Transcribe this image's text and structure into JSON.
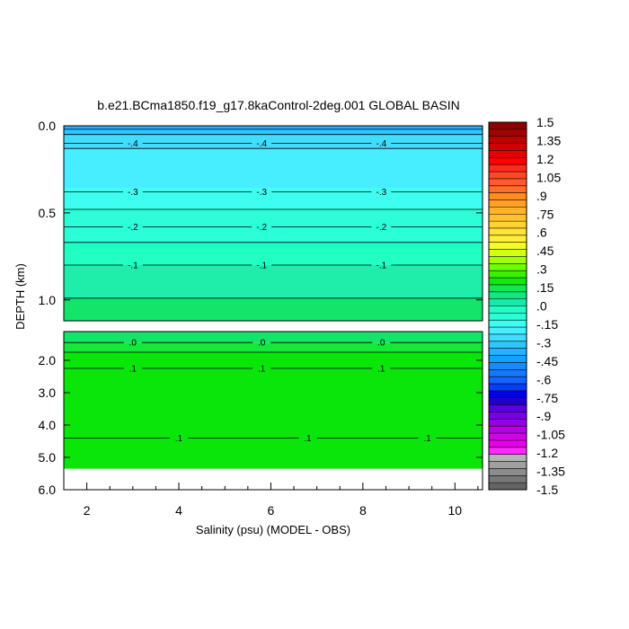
{
  "chart_data": {
    "type": "heatmap",
    "title": "b.e21.BCma1850.f19_g17.8kaControl-2deg.001 GLOBAL BASIN",
    "xlabel": "Salinity (psu) (MODEL - OBS)",
    "ylabel": "DEPTH (km)",
    "xlim": [
      1.5,
      10.6
    ],
    "x_ticks": [
      "2",
      "4",
      "6",
      "8",
      "10"
    ],
    "upper_panel": {
      "ylim": [
        0.0,
        1.12
      ],
      "y_ticks": [
        "0.0",
        "0.5",
        "1.0"
      ],
      "bands": [
        {
          "from": 0.0,
          "to": 0.02,
          "color": "#1fb4ff"
        },
        {
          "from": 0.02,
          "to": 0.05,
          "color": "#2ec6ff"
        },
        {
          "from": 0.05,
          "to": 0.13,
          "color": "#41ddff"
        },
        {
          "from": 0.13,
          "to": 0.36,
          "color": "#46eeff"
        },
        {
          "from": 0.36,
          "to": 0.48,
          "color": "#3effef"
        },
        {
          "from": 0.48,
          "to": 0.67,
          "color": "#2cffd8"
        },
        {
          "from": 0.67,
          "to": 0.8,
          "color": "#22ffc2"
        },
        {
          "from": 0.8,
          "to": 0.99,
          "color": "#1eeeaa"
        },
        {
          "from": 0.99,
          "to": 1.12,
          "color": "#14e56a"
        }
      ],
      "contours": [
        {
          "depth": 0.02,
          "label": ""
        },
        {
          "depth": 0.05,
          "label": ""
        },
        {
          "depth": 0.1,
          "label": "-.4"
        },
        {
          "depth": 0.13,
          "label": ""
        },
        {
          "depth": 0.38,
          "label": "-.3"
        },
        {
          "depth": 0.48,
          "label": ""
        },
        {
          "depth": 0.58,
          "label": "-.2"
        },
        {
          "depth": 0.67,
          "label": ""
        },
        {
          "depth": 0.8,
          "label": "-.1"
        },
        {
          "depth": 0.99,
          "label": ""
        }
      ]
    },
    "lower_panel": {
      "ylim": [
        1.0,
        6.0
      ],
      "y_ticks": [
        "2.0",
        "3.0",
        "4.0",
        "5.0",
        "6.0"
      ],
      "data_bottom": 5.35,
      "bands": [
        {
          "from": 1.0,
          "to": 1.45,
          "color": "#14e56a"
        },
        {
          "from": 1.45,
          "to": 1.75,
          "color": "#14e83a"
        },
        {
          "from": 1.75,
          "to": 5.35,
          "color": "#0ae60a"
        }
      ],
      "contours": [
        {
          "depth": 1.45,
          "label": ".0"
        },
        {
          "depth": 1.75,
          "label": ""
        },
        {
          "depth": 2.25,
          "label": ".1"
        },
        {
          "depth": 4.4,
          "label": ".1"
        }
      ]
    },
    "colorbar": {
      "labels": [
        "1.5",
        "1.35",
        "1.2",
        "1.05",
        ".9",
        ".75",
        ".6",
        ".45",
        ".3",
        ".15",
        ".0",
        "-.15",
        "-.3",
        "-.45",
        "-.6",
        "-.75",
        "-.9",
        "-1.05",
        "-1.2",
        "-1.35",
        "-1.5"
      ],
      "colors": [
        "#8c0000",
        "#a50000",
        "#be0000",
        "#d20000",
        "#e60000",
        "#ff0000",
        "#ff2a1a",
        "#ff4625",
        "#ff5a32",
        "#ff6e28",
        "#ff8c1e",
        "#ff9f28",
        "#ffb22d",
        "#ffc328",
        "#ffd232",
        "#ffe23c",
        "#fff032",
        "#f5ff1e",
        "#d2ff14",
        "#a0ff0a",
        "#6eff00",
        "#3cf000",
        "#14e614",
        "#14e650",
        "#14e682",
        "#1ee6aa",
        "#22ffc2",
        "#2cffd8",
        "#3effef",
        "#46eeff",
        "#41ddff",
        "#2ec6ff",
        "#1fb4ff",
        "#14a0ff",
        "#148cff",
        "#1478ff",
        "#1464ff",
        "#0a3cff",
        "#0000e6",
        "#1e00c8",
        "#5a00dc",
        "#7800e6",
        "#9600e6",
        "#b400e6",
        "#d200e6",
        "#e600e6",
        "#fa28fa",
        "#b4b4b4",
        "#a0a0a0",
        "#8c8c8c",
        "#787878",
        "#646464"
      ]
    }
  }
}
